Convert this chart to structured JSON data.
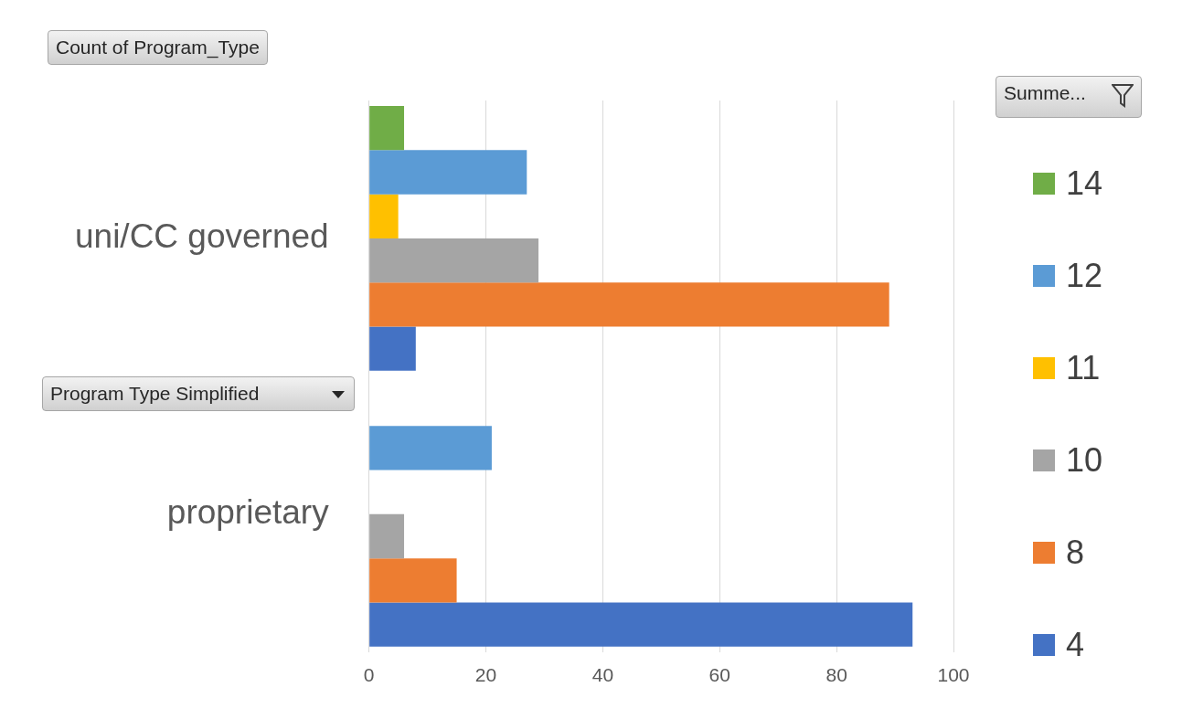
{
  "chart_data": {
    "type": "bar",
    "orientation": "horizontal",
    "title": "Count of Program_Type",
    "ylabel": "Program Type Simplified",
    "legend_title": "Summe...",
    "categories": [
      "uni/CC governed",
      "proprietary"
    ],
    "series": [
      {
        "name": "14",
        "color": "#70ad47",
        "values": [
          6,
          null
        ]
      },
      {
        "name": "12",
        "color": "#5b9bd5",
        "values": [
          27,
          21
        ]
      },
      {
        "name": "11",
        "color": "#ffc000",
        "values": [
          5,
          null
        ]
      },
      {
        "name": "10",
        "color": "#a5a5a5",
        "values": [
          29,
          6
        ]
      },
      {
        "name": "8",
        "color": "#ed7d31",
        "values": [
          89,
          15
        ]
      },
      {
        "name": "4",
        "color": "#4472c4",
        "values": [
          8,
          93
        ]
      }
    ],
    "xlim": [
      0,
      100
    ],
    "xticks": [
      0,
      20,
      40,
      60,
      80,
      100
    ],
    "grid": "x",
    "legend": "right"
  }
}
